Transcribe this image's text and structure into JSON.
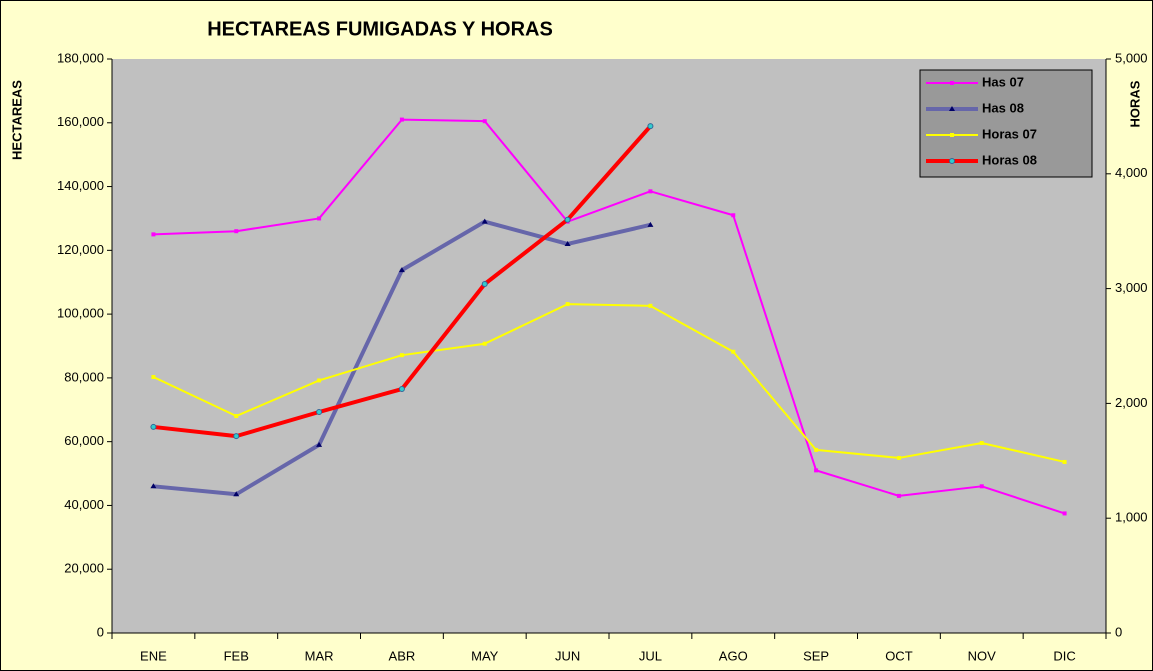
{
  "chart_data": {
    "type": "line",
    "title": "HECTAREAS FUMIGADAS Y HORAS",
    "y_label": "HECTAREAS",
    "y2_label": "HORAS",
    "categories": [
      "ENE",
      "FEB",
      "MAR",
      "ABR",
      "MAY",
      "JUN",
      "JUL",
      "AGO",
      "SEP",
      "OCT",
      "NOV",
      "DIC"
    ],
    "ylim": [
      0,
      180000
    ],
    "yticks": [
      0,
      {
        "value": 20000,
        "label": "20,000"
      },
      {
        "value": 40000,
        "label": "40,000"
      },
      {
        "value": 60000,
        "label": "60,000"
      },
      {
        "value": 80000,
        "label": "80,000"
      },
      {
        "value": 100000,
        "label": "100,000"
      },
      {
        "value": 120000,
        "label": "120,000"
      },
      {
        "value": 140000,
        "label": "140,000"
      },
      {
        "value": 160000,
        "label": "160,000"
      },
      {
        "value": 180000,
        "label": "180,000"
      }
    ],
    "y2lim": [
      0,
      5000
    ],
    "y2ticks": [
      0,
      {
        "value": 1000,
        "label": "1,000"
      },
      {
        "value": 2000,
        "label": "2,000"
      },
      {
        "value": 3000,
        "label": "3,000"
      },
      {
        "value": 4000,
        "label": "4,000"
      },
      {
        "value": 5000,
        "label": "5,000"
      }
    ],
    "legend": "upper right",
    "series": [
      {
        "name": "Has 07",
        "color": "#ff00ff",
        "marker": "square",
        "values": [
          125000,
          126000,
          130000,
          161000,
          160500,
          129000,
          138500,
          131000,
          51000,
          43000,
          46000,
          37500
        ]
      },
      {
        "name": "Has 08",
        "color": "#6666aa",
        "marker": "triangle",
        "values": [
          46000,
          43500,
          59000,
          113800,
          129000,
          122000,
          128000,
          null,
          null,
          null,
          null,
          null
        ]
      },
      {
        "name": "Horas 07",
        "color": "#ffff00",
        "marker": "square",
        "axis": "y2",
        "values": [
          2230,
          1890,
          2200,
          2420,
          2520,
          2865,
          2850,
          2450,
          1595,
          1525,
          1655,
          1490
        ]
      },
      {
        "name": "Horas 08",
        "color": "#ff0000",
        "marker": "circle",
        "axis": "y2",
        "values": [
          1795,
          1715,
          1925,
          2125,
          3040,
          3600,
          4415,
          null,
          null,
          null,
          null,
          null
        ]
      }
    ]
  }
}
